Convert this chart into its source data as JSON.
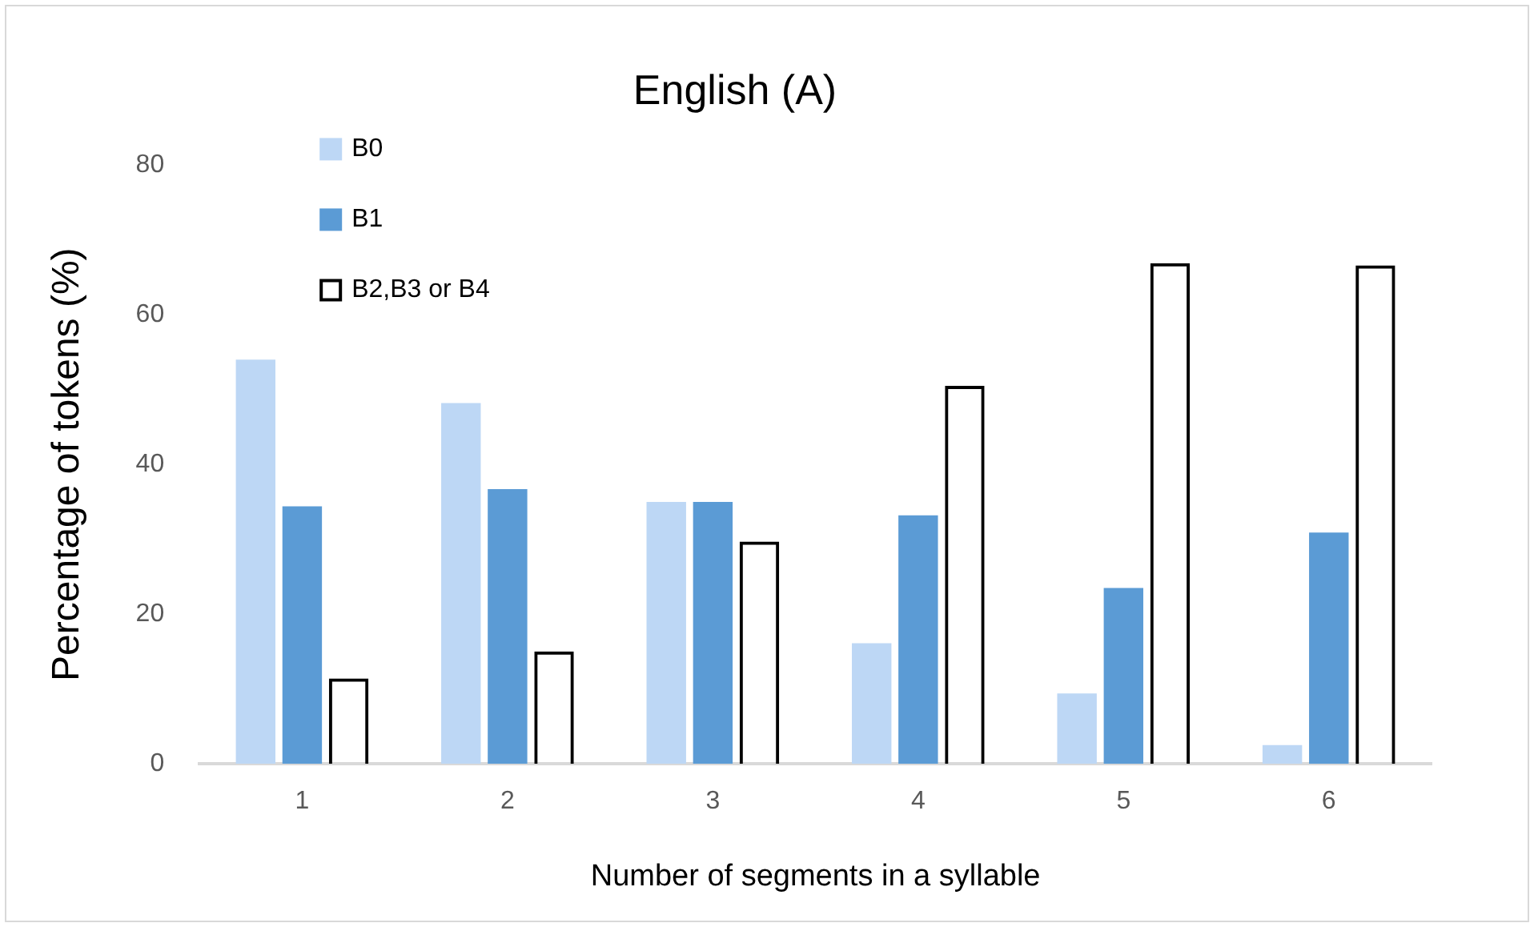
{
  "chart_data": {
    "type": "bar",
    "title": "English (A)",
    "xlabel": "Number of segments in a syllable",
    "ylabel": "Percentage of tokens (%)",
    "categories": [
      "1",
      "2",
      "3",
      "4",
      "5",
      "6"
    ],
    "series": [
      {
        "name": "B0",
        "color": "#bdd7f5",
        "values": [
          54,
          48.2,
          35,
          16.1,
          9.4,
          2.5
        ]
      },
      {
        "name": "B1",
        "color": "#5b9bd5",
        "values": [
          34.4,
          36.7,
          35,
          33.2,
          23.5,
          30.9
        ]
      },
      {
        "name": "B2,B3 or B4",
        "color": "#000000",
        "values": [
          11.4,
          15,
          29.7,
          50.5,
          66.9,
          66.6
        ]
      }
    ],
    "ylim": [
      0,
      80
    ],
    "yticks": [
      0,
      20,
      40,
      60,
      80
    ],
    "grid": false,
    "legend": "top left"
  }
}
